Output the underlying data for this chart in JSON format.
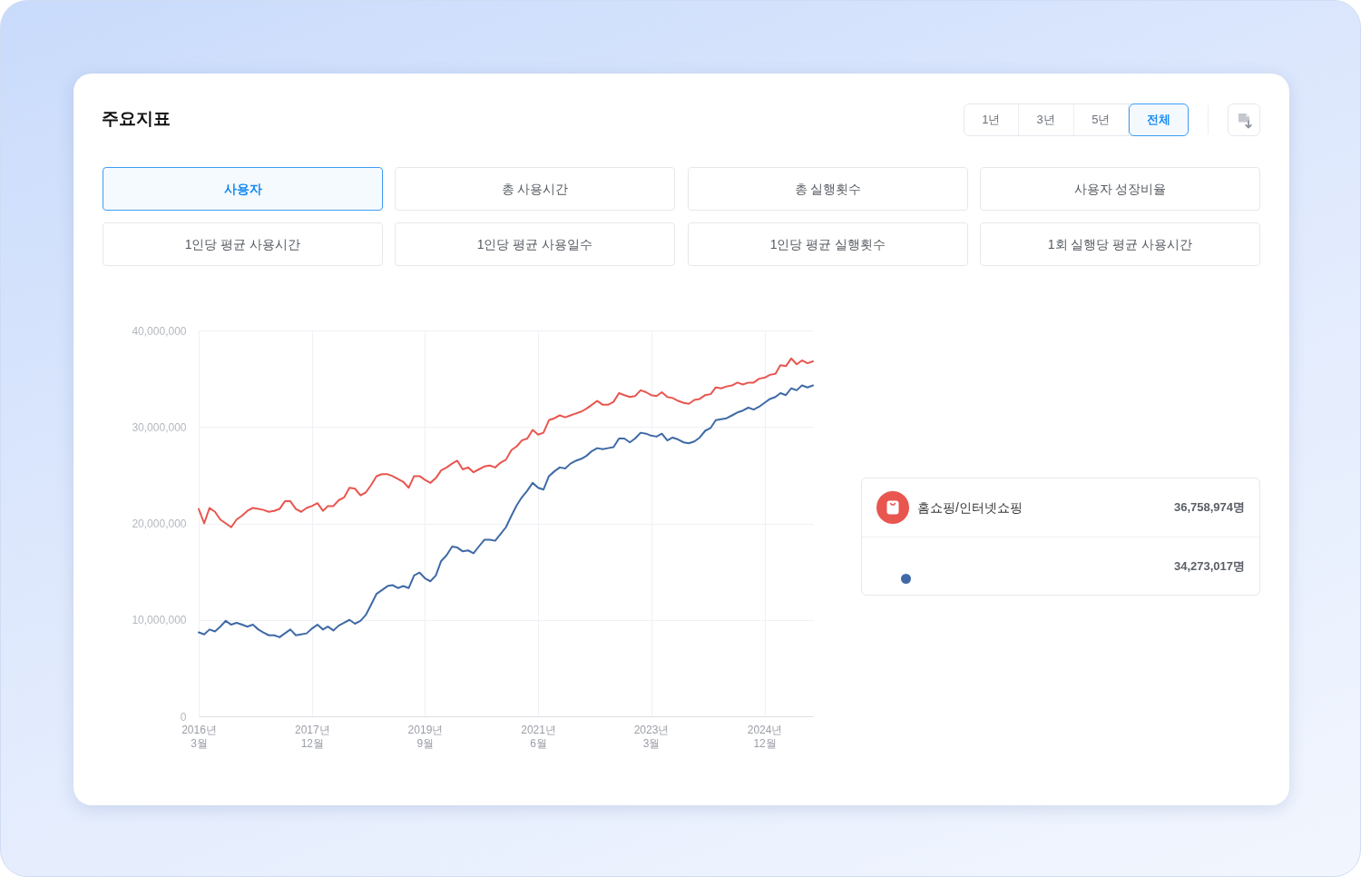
{
  "chart_data": {
    "type": "line",
    "title": "주요지표",
    "x": [
      "2016-03",
      "2016-04",
      "2016-05",
      "2016-06",
      "2016-07",
      "2016-08",
      "2016-09",
      "2016-10",
      "2016-11",
      "2016-12",
      "2017-01",
      "2017-02",
      "2017-03",
      "2017-04",
      "2017-05",
      "2017-06",
      "2017-07",
      "2017-08",
      "2017-09",
      "2017-10",
      "2017-11",
      "2017-12",
      "2018-01",
      "2018-02",
      "2018-03",
      "2018-04",
      "2018-05",
      "2018-06",
      "2018-07",
      "2018-08",
      "2018-09",
      "2018-10",
      "2018-11",
      "2018-12",
      "2019-01",
      "2019-02",
      "2019-03",
      "2019-04",
      "2019-05",
      "2019-06",
      "2019-07",
      "2019-08",
      "2019-09",
      "2019-10",
      "2019-11",
      "2019-12",
      "2020-01",
      "2020-02",
      "2020-03",
      "2020-04",
      "2020-05",
      "2020-06",
      "2020-07",
      "2020-08",
      "2020-09",
      "2020-10",
      "2020-11",
      "2020-12",
      "2021-01",
      "2021-02",
      "2021-03",
      "2021-04",
      "2021-05",
      "2021-06",
      "2021-07",
      "2021-08",
      "2021-09",
      "2021-10",
      "2021-11",
      "2021-12",
      "2022-01",
      "2022-02",
      "2022-03",
      "2022-04",
      "2022-05",
      "2022-06",
      "2022-07",
      "2022-08",
      "2022-09",
      "2022-10",
      "2022-11",
      "2022-12",
      "2023-01",
      "2023-02",
      "2023-03",
      "2023-04",
      "2023-05",
      "2023-06",
      "2023-07",
      "2023-08",
      "2023-09",
      "2023-10",
      "2023-11",
      "2023-12",
      "2024-01",
      "2024-02",
      "2024-03",
      "2024-04",
      "2024-05",
      "2024-06",
      "2024-07",
      "2024-08",
      "2024-09",
      "2024-10",
      "2024-11",
      "2024-12",
      "2025-01",
      "2025-02",
      "2025-03",
      "2025-04",
      "2025-05",
      "2025-06",
      "2025-07",
      "2025-08",
      "2025-09"
    ],
    "series": [
      {
        "name": "홈쇼핑/인터넷쇼핑",
        "color": "#e8564f",
        "values": [
          21500000,
          20000000,
          21600000,
          21200000,
          20400000,
          20000000,
          19600000,
          20400000,
          20800000,
          21300000,
          21600000,
          21500000,
          21400000,
          21200000,
          21300000,
          21500000,
          22300000,
          22300000,
          21500000,
          21200000,
          21600000,
          21800000,
          22100000,
          21300000,
          21800000,
          21800000,
          22400000,
          22700000,
          23700000,
          23600000,
          22900000,
          23200000,
          24000000,
          24900000,
          25100000,
          25100000,
          24900000,
          24600000,
          24300000,
          23700000,
          24900000,
          24900000,
          24500000,
          24200000,
          24700000,
          25500000,
          25800000,
          26200000,
          26500000,
          25600000,
          25800000,
          25300000,
          25600000,
          25900000,
          26000000,
          25800000,
          26300000,
          26600000,
          27600000,
          28000000,
          28600000,
          28800000,
          29700000,
          29200000,
          29400000,
          30700000,
          30900000,
          31200000,
          31000000,
          31200000,
          31400000,
          31600000,
          31900000,
          32300000,
          32700000,
          32300000,
          32300000,
          32600000,
          33500000,
          33300000,
          33100000,
          33200000,
          33800000,
          33600000,
          33300000,
          33200000,
          33600000,
          33100000,
          33000000,
          32700000,
          32500000,
          32400000,
          32800000,
          32900000,
          33300000,
          33400000,
          34100000,
          34000000,
          34200000,
          34300000,
          34600000,
          34400000,
          34600000,
          34600000,
          35000000,
          35100000,
          35400000,
          35500000,
          36400000,
          36300000,
          37100000,
          36500000,
          36900000,
          36600000,
          36800000
        ]
      },
      {
        "color": "#3f6aa6",
        "values": [
          8700000,
          8500000,
          9000000,
          8800000,
          9300000,
          9900000,
          9500000,
          9700000,
          9500000,
          9300000,
          9500000,
          9000000,
          8700000,
          8400000,
          8400000,
          8200000,
          8600000,
          9000000,
          8400000,
          8500000,
          8600000,
          9100000,
          9500000,
          9000000,
          9300000,
          8900000,
          9400000,
          9700000,
          10000000,
          9600000,
          9900000,
          10500000,
          11600000,
          12700000,
          13100000,
          13500000,
          13600000,
          13300000,
          13500000,
          13300000,
          14600000,
          14900000,
          14300000,
          14000000,
          14600000,
          16100000,
          16700000,
          17600000,
          17500000,
          17100000,
          17200000,
          16900000,
          17600000,
          18300000,
          18300000,
          18200000,
          18900000,
          19600000,
          20800000,
          21900000,
          22700000,
          23400000,
          24200000,
          23700000,
          23500000,
          24900000,
          25400000,
          25800000,
          25700000,
          26200000,
          26500000,
          26700000,
          27000000,
          27500000,
          27800000,
          27700000,
          27800000,
          27900000,
          28800000,
          28800000,
          28400000,
          28800000,
          29400000,
          29300000,
          29100000,
          29000000,
          29300000,
          28600000,
          28900000,
          28700000,
          28400000,
          28300000,
          28500000,
          28900000,
          29600000,
          29900000,
          30700000,
          30800000,
          30900000,
          31200000,
          31500000,
          31700000,
          32000000,
          31800000,
          32100000,
          32500000,
          32900000,
          33100000,
          33500000,
          33300000,
          34000000,
          33800000,
          34300000,
          34100000,
          34300000
        ]
      }
    ],
    "xlim": [
      "2016-03",
      "2025-09"
    ],
    "xticks": [
      {
        "value": "2016-03",
        "label": "2016년\n3월"
      },
      {
        "value": "2017-12",
        "label": "2017년\n12월"
      },
      {
        "value": "2019-09",
        "label": "2019년\n9월"
      },
      {
        "value": "2021-06",
        "label": "2021년\n6월"
      },
      {
        "value": "2023-03",
        "label": "2023년\n3월"
      },
      {
        "value": "2024-12",
        "label": "2024년\n12월"
      }
    ],
    "ylim": [
      0,
      40000000
    ],
    "yticks": [
      0,
      {
        "value": 10000000,
        "label": "10,000,000"
      },
      {
        "value": 20000000,
        "label": "20,000,000"
      },
      {
        "value": 30000000,
        "label": "30,000,000"
      },
      {
        "value": 40000000,
        "label": "40,000,000"
      }
    ],
    "grid": true,
    "legend": "right",
    "annotations": [
      "1년",
      "3년",
      "5년",
      "전체",
      "사용자",
      "총 사용시간",
      "총 실행횟수",
      "사용자 성장비율",
      "1인당 평균 사용시간",
      "1인당 평균 사용일수",
      "1인당 평균 실행횟수",
      "1회 실행당 평균 사용시간",
      "36,758,974명",
      "34,273,017명"
    ]
  }
}
